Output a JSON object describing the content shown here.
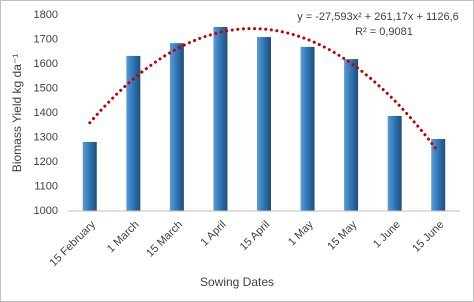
{
  "chart_data": {
    "type": "bar",
    "x_label": "Sowing Dates",
    "y_label": "Biomass Yield kg da⁻¹",
    "categories": [
      "15 February",
      "1 March",
      "15 March",
      "1 April",
      "15 April",
      "1 May",
      "15 May",
      "1 June",
      "15 June"
    ],
    "values": [
      1282,
      1633,
      1685,
      1751,
      1710,
      1670,
      1620,
      1388,
      1294
    ],
    "color": "#2e75b6",
    "ylim": [
      1000,
      1800
    ],
    "yticks": [
      1000,
      1100,
      1200,
      1300,
      1400,
      1500,
      1600,
      1700,
      1800
    ],
    "grid": false,
    "trendline": {
      "equation": "y = -27,593x² + 261,17x + 1126,6",
      "r_squared": "R² = 0,9081",
      "coefficients": [
        -27.593,
        261.17,
        1126.6
      ],
      "color": "#c00000"
    }
  }
}
